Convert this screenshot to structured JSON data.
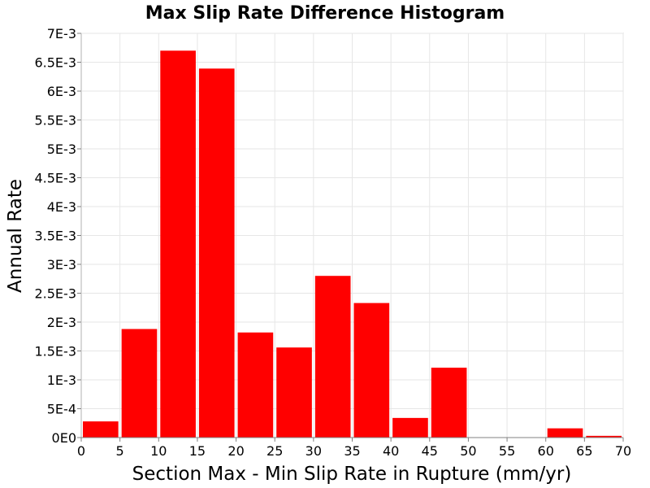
{
  "chart_data": {
    "type": "bar",
    "title": "Max Slip Rate Difference Histogram",
    "xlabel": "Section Max - Min Slip Rate in Rupture (mm/yr)",
    "ylabel": "Annual Rate",
    "xlim": [
      0,
      70
    ],
    "ylim": [
      0,
      0.007
    ],
    "grid": true,
    "legend": "none",
    "bar_color": "#ff0000",
    "bin_width": 5,
    "x_ticks": [
      0,
      5,
      10,
      15,
      20,
      25,
      30,
      35,
      40,
      45,
      50,
      55,
      60,
      65,
      70
    ],
    "x_tick_labels": [
      "0",
      "5",
      "10",
      "15",
      "20",
      "25",
      "30",
      "35",
      "40",
      "45",
      "50",
      "55",
      "60",
      "65",
      "70"
    ],
    "y_ticks": [
      0,
      0.0005,
      0.001,
      0.0015,
      0.002,
      0.0025,
      0.003,
      0.0035,
      0.004,
      0.0045,
      0.005,
      0.0055,
      0.006,
      0.0065,
      0.007
    ],
    "y_tick_labels": [
      "0E0",
      "5E-4",
      "1E-3",
      "1.5E-3",
      "2E-3",
      "2.5E-3",
      "3E-3",
      "3.5E-3",
      "4E-3",
      "4.5E-3",
      "5E-3",
      "5.5E-3",
      "6E-3",
      "6.5E-3",
      "7E-3"
    ],
    "bins": [
      {
        "x0": 0,
        "x1": 5,
        "value": 0.00028
      },
      {
        "x0": 5,
        "x1": 10,
        "value": 0.00188
      },
      {
        "x0": 10,
        "x1": 15,
        "value": 0.0067
      },
      {
        "x0": 15,
        "x1": 20,
        "value": 0.00639
      },
      {
        "x0": 20,
        "x1": 25,
        "value": 0.00182
      },
      {
        "x0": 25,
        "x1": 30,
        "value": 0.00156
      },
      {
        "x0": 30,
        "x1": 35,
        "value": 0.0028
      },
      {
        "x0": 35,
        "x1": 40,
        "value": 0.00233
      },
      {
        "x0": 40,
        "x1": 45,
        "value": 0.00034
      },
      {
        "x0": 45,
        "x1": 50,
        "value": 0.00121
      },
      {
        "x0": 50,
        "x1": 55,
        "value": 0
      },
      {
        "x0": 55,
        "x1": 60,
        "value": 0
      },
      {
        "x0": 60,
        "x1": 65,
        "value": 0.00016
      },
      {
        "x0": 65,
        "x1": 70,
        "value": 3e-05
      }
    ]
  }
}
